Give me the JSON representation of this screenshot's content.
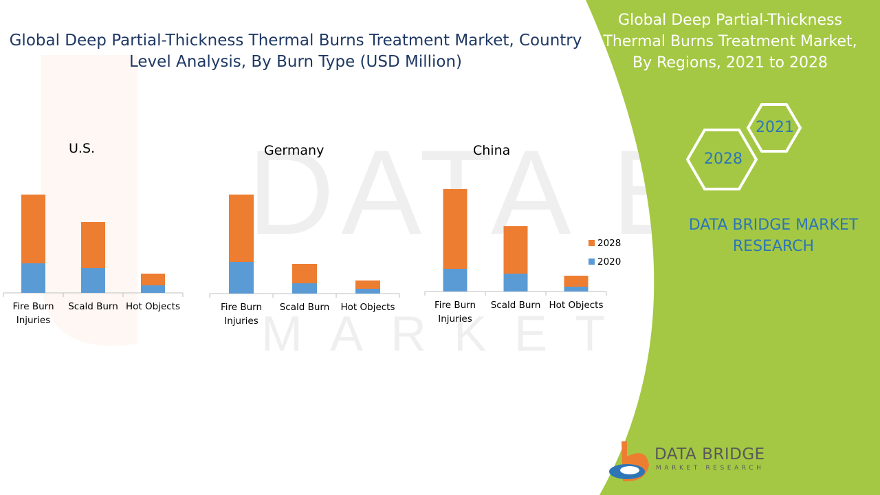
{
  "main_title": "Global Deep Partial-Thickness Thermal Burns Treatment Market, Country Level Analysis, By  Burn Type (USD Million)",
  "side_panel": {
    "title": "Global Deep Partial-Thickness Thermal Burns Treatment Market, By Regions, 2021 to 2028",
    "hex_year_top": "2021",
    "hex_year_bottom": "2028",
    "brand_text": "DATA BRIDGE MARKET RESEARCH",
    "panel_color": "#a4c843"
  },
  "logo": {
    "name": "DATA BRIDGE",
    "tagline": "MARKET RESEARCH"
  },
  "watermark": {
    "line1": "DATA BRIDGE",
    "line2": "MARKET RESEARCH"
  },
  "legend": [
    {
      "label": "2028",
      "color": "#ed7d31"
    },
    {
      "label": "2020",
      "color": "#5b9bd5"
    }
  ],
  "chart_data": [
    {
      "type": "bar",
      "stacked": true,
      "title": "U.S.",
      "categories": [
        "Fire Burn Injuries",
        "Scald Burn",
        "Hot Objects"
      ],
      "category_lines": [
        [
          "Fire Burn",
          "Injuries"
        ],
        [
          "Scald Burn"
        ],
        [
          "Hot Objects"
        ]
      ],
      "series": [
        {
          "name": "2020",
          "values": [
            43,
            36,
            11
          ]
        },
        {
          "name": "2028",
          "values": [
            100,
            67,
            17
          ]
        }
      ]
    },
    {
      "type": "bar",
      "stacked": true,
      "title": "Germany",
      "categories": [
        "Fire Burn Injuries",
        "Scald Burn",
        "Hot Objects"
      ],
      "category_lines": [
        [
          "Fire Burn",
          "Injuries"
        ],
        [
          "Scald Burn"
        ],
        [
          "Hot Objects"
        ]
      ],
      "series": [
        {
          "name": "2020",
          "values": [
            46,
            15,
            7
          ]
        },
        {
          "name": "2028",
          "values": [
            98,
            28,
            12
          ]
        }
      ]
    },
    {
      "type": "bar",
      "stacked": true,
      "title": "China",
      "categories": [
        "Fire Burn Injuries",
        "Scald Burn",
        "Hot Objects"
      ],
      "category_lines": [
        [
          "Fire Burn",
          "Injuries"
        ],
        [
          "Scald Burn"
        ],
        [
          "Hot Objects"
        ]
      ],
      "series": [
        {
          "name": "2020",
          "values": [
            33,
            26,
            7
          ]
        },
        {
          "name": "2028",
          "values": [
            116,
            69,
            16
          ]
        }
      ]
    }
  ]
}
